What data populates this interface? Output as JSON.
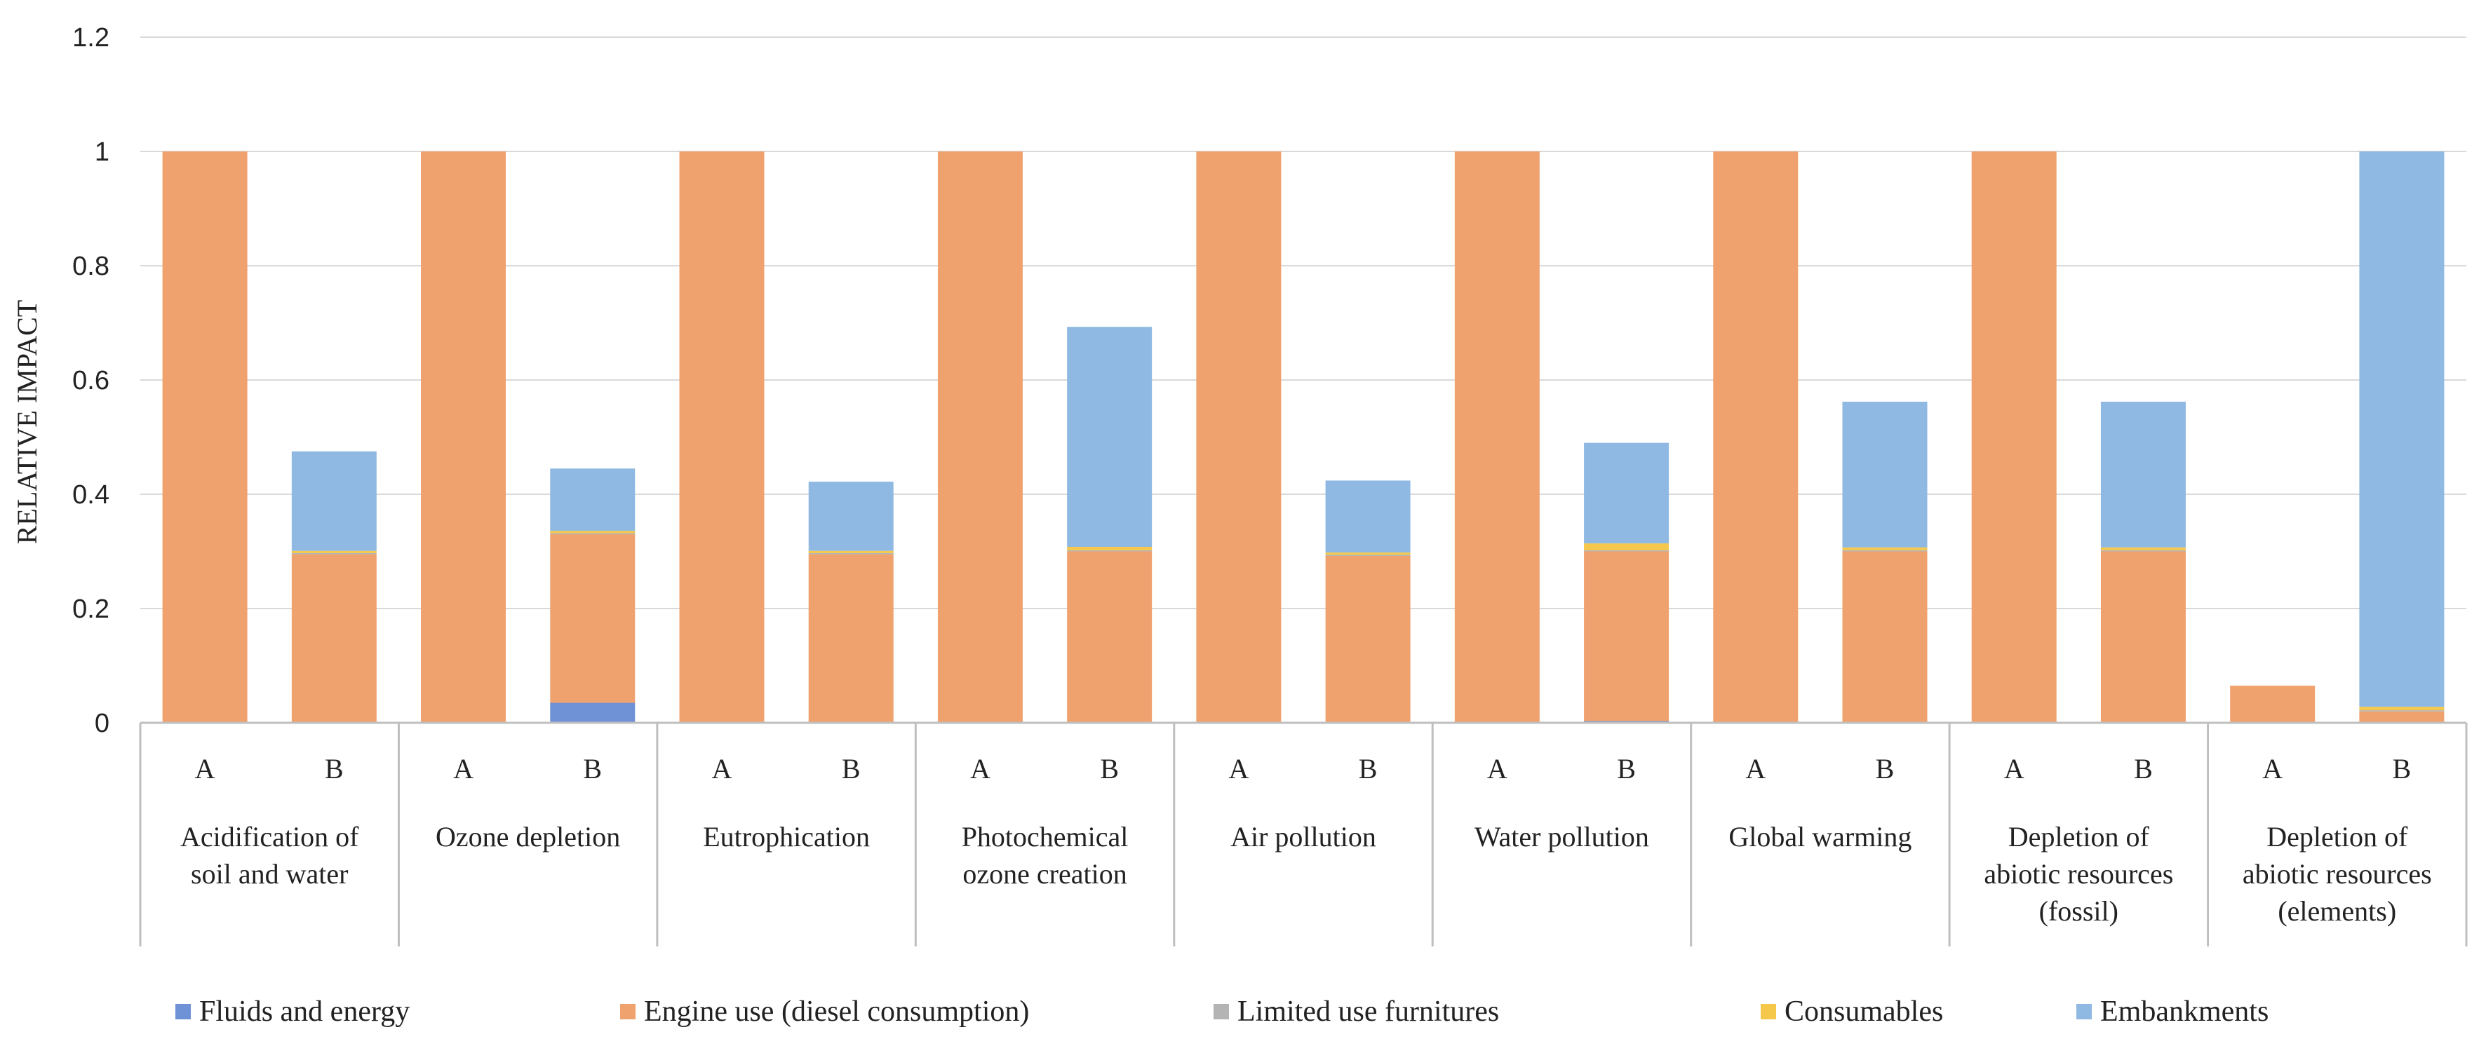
{
  "chart_data": {
    "type": "bar",
    "stacked": true,
    "ylabel": "RELATIVE IMPACT",
    "ylim": [
      0,
      1.2
    ],
    "yticks": [
      0,
      0.2,
      0.4,
      0.6,
      0.8,
      1,
      1.2
    ],
    "ytick_labels": [
      "0",
      "0.2",
      "0.4",
      "0.6",
      "0.8",
      "1",
      "1.2"
    ],
    "groups": [
      {
        "name": [
          "Acidification of",
          "soil and water"
        ],
        "bars": [
          "A",
          "B"
        ]
      },
      {
        "name": [
          "Ozone depletion"
        ],
        "bars": [
          "A",
          "B"
        ]
      },
      {
        "name": [
          "Eutrophication"
        ],
        "bars": [
          "A",
          "B"
        ]
      },
      {
        "name": [
          "Photochemical",
          "ozone creation"
        ],
        "bars": [
          "A",
          "B"
        ]
      },
      {
        "name": [
          "Air pollution"
        ],
        "bars": [
          "A",
          "B"
        ]
      },
      {
        "name": [
          "Water pollution"
        ],
        "bars": [
          "A",
          "B"
        ]
      },
      {
        "name": [
          "Global warming"
        ],
        "bars": [
          "A",
          "B"
        ]
      },
      {
        "name": [
          "Depletion of",
          "abiotic resources",
          "(fossil)"
        ],
        "bars": [
          "A",
          "B"
        ]
      },
      {
        "name": [
          "Depletion of",
          "abiotic resources",
          "(elements)"
        ],
        "bars": [
          "A",
          "B"
        ]
      }
    ],
    "series": [
      {
        "name": "Fluids and energy",
        "color": "#6f91d6",
        "values": [
          0,
          0,
          0,
          0.035,
          0,
          0,
          0,
          0,
          0,
          0,
          0,
          0.003,
          0,
          0,
          0,
          0,
          0,
          0
        ]
      },
      {
        "name": "Engine use (diesel consumption)",
        "color": "#f0a26e",
        "values": [
          1,
          0.295,
          1,
          0.295,
          1,
          0.295,
          1,
          0.3,
          1,
          0.292,
          1,
          0.297,
          1,
          0.3,
          1,
          0.3,
          0.065,
          0.02
        ]
      },
      {
        "name": "Limited use furnitures",
        "color": "#b4b4b4",
        "values": [
          0,
          0.002,
          0,
          0.002,
          0,
          0.002,
          0,
          0.002,
          0,
          0.002,
          0,
          0.002,
          0,
          0.002,
          0,
          0.002,
          0,
          0.002
        ]
      },
      {
        "name": "Consumables",
        "color": "#f5c84b",
        "values": [
          0,
          0.004,
          0,
          0.004,
          0,
          0.004,
          0,
          0.006,
          0,
          0.004,
          0,
          0.012,
          0,
          0.005,
          0,
          0.005,
          0,
          0.006
        ]
      },
      {
        "name": "Embankments",
        "color": "#8fb9e2",
        "values": [
          0,
          0.174,
          0,
          0.109,
          0,
          0.121,
          0,
          0.385,
          0,
          0.126,
          0,
          0.176,
          0,
          0.255,
          0,
          0.255,
          0,
          0.972
        ]
      }
    ]
  }
}
